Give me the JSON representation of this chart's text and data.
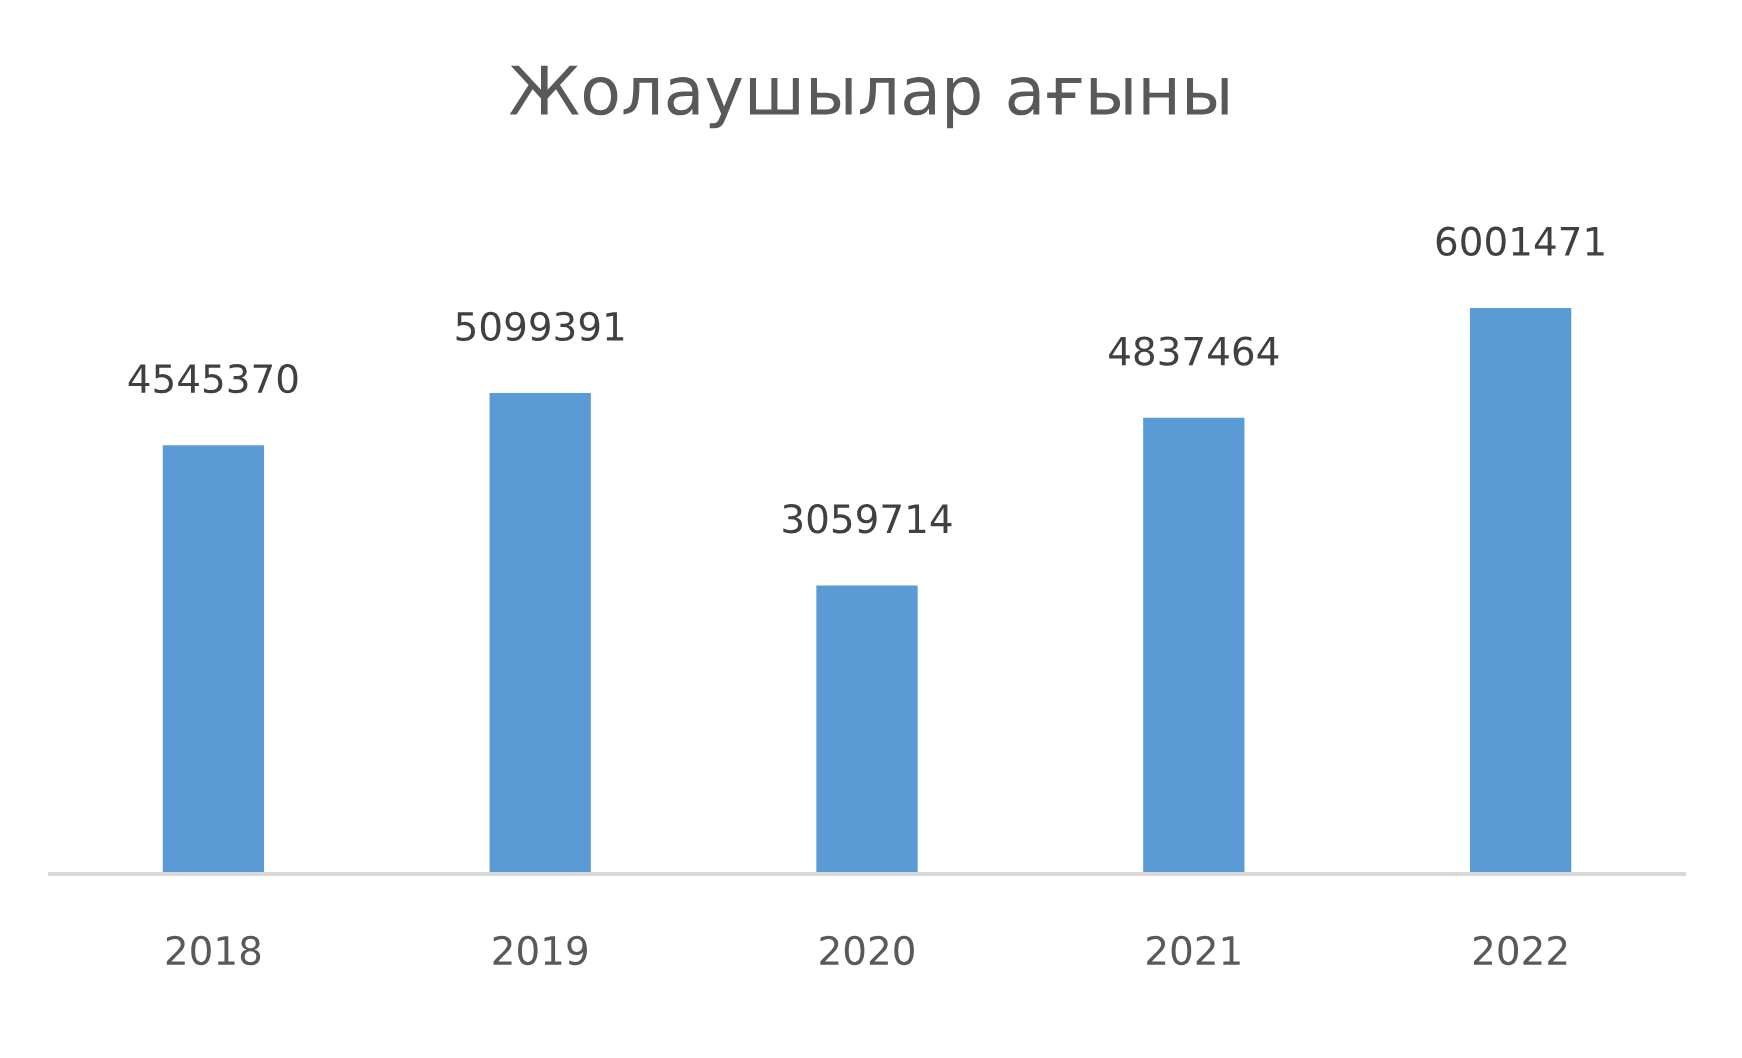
{
  "chart_data": {
    "type": "bar",
    "title": "Жолаушылар ағыны",
    "categories": [
      "2018",
      "2019",
      "2020",
      "2021",
      "2022"
    ],
    "values": [
      4545370,
      5099391,
      3059714,
      4837464,
      6001471
    ],
    "color": "#5b9bd5",
    "data_labels": true,
    "grid": false,
    "legend": false
  }
}
